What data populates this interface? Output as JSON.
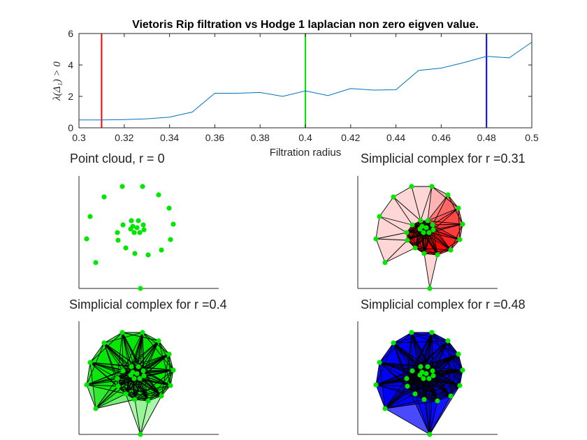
{
  "figure": {
    "title": "Vietoris Rip filtration vs Hodge 1 laplacian non zero eigven value.",
    "xlabel": "Filtration radius",
    "ylabel": "λ(Δ₁) > 0"
  },
  "panels": {
    "point_cloud": {
      "title": "Point cloud, r = 0",
      "title_color": "#000000",
      "point_color": "#00e600"
    },
    "complex_r031": {
      "title": "Simplicial complex for r =0.31",
      "title_color": "#ff0000",
      "fill_color": "#ff0000",
      "point_color": "#00e600"
    },
    "complex_r040": {
      "title": "Simplicial complex for r =0.4",
      "title_color": "#00e600",
      "fill_color": "#00e600",
      "point_color": "#00e600"
    },
    "complex_r048": {
      "title": "Simplicial complex for r =0.48",
      "title_color": "#0000ff",
      "fill_color": "#0000ff",
      "point_color": "#00e600"
    }
  },
  "chart_data": {
    "type": "line",
    "x": [
      0.3,
      0.31,
      0.32,
      0.33,
      0.34,
      0.35,
      0.36,
      0.37,
      0.38,
      0.39,
      0.4,
      0.41,
      0.42,
      0.43,
      0.44,
      0.45,
      0.46,
      0.47,
      0.48,
      0.49,
      0.5
    ],
    "series": [
      {
        "values": [
          0.5,
          0.5,
          0.52,
          0.57,
          0.68,
          1.0,
          2.2,
          2.2,
          2.25,
          2.0,
          2.35,
          2.05,
          2.5,
          2.4,
          2.42,
          3.65,
          3.8,
          4.15,
          4.55,
          4.45,
          5.45
        ],
        "color": "#0072bd"
      }
    ],
    "xlim": [
      0.3,
      0.5
    ],
    "ylim": [
      0,
      6
    ],
    "xticks": [
      "0.3",
      "0.32",
      "0.34",
      "0.36",
      "0.38",
      "0.4",
      "0.42",
      "0.44",
      "0.46",
      "0.48",
      "0.5"
    ],
    "yticks": [
      "0",
      "2",
      "4",
      "6"
    ],
    "vlines": [
      {
        "x": 0.31,
        "color": "#ff0000"
      },
      {
        "x": 0.4,
        "color": "#00e600"
      },
      {
        "x": 0.48,
        "color": "#0000ff"
      }
    ],
    "grid": false
  }
}
